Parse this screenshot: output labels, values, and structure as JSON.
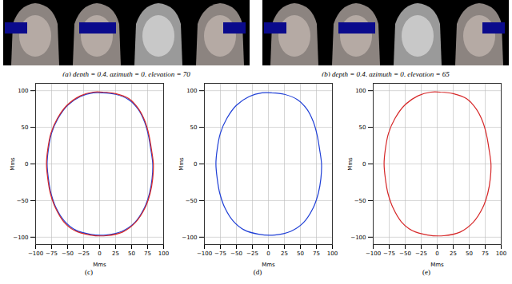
{
  "images": [
    {
      "caption": "(a) depth = 0.4, azimuth = 0, elevation = 70"
    },
    {
      "caption": "(b) depth = 0.4, azimuth = 0, elevation = 65"
    }
  ],
  "chart_data": [
    {
      "type": "line",
      "caption": "(c)",
      "x_label": "Mms",
      "y_label": "Mms",
      "xlim": [
        -100,
        100
      ],
      "ylim": [
        -110,
        110
      ],
      "xticks": [
        -100,
        -75,
        -50,
        -25,
        0,
        25,
        50,
        75,
        100
      ],
      "yticks": [
        -100,
        -50,
        0,
        50,
        100
      ],
      "grid": true,
      "series": [
        {
          "color": "#1f3fd6",
          "line_style": "solid",
          "x": [
            5,
            25,
            45,
            60,
            70,
            76,
            80,
            83,
            82,
            78,
            70,
            55,
            35,
            10,
            -15,
            -38,
            -55,
            -68,
            -76,
            -80,
            -82,
            -80,
            -75,
            -65,
            -50,
            -30,
            -10,
            5
          ],
          "y": [
            97,
            95,
            88,
            75,
            58,
            40,
            20,
            0,
            -20,
            -40,
            -60,
            -80,
            -92,
            -97,
            -96,
            -90,
            -78,
            -60,
            -40,
            -20,
            0,
            20,
            42,
            62,
            80,
            92,
            97,
            97
          ]
        },
        {
          "color": "#d62728",
          "line_style": "solid",
          "x": [
            5,
            25,
            46,
            61,
            71,
            77,
            81,
            84,
            83,
            79,
            71,
            56,
            36,
            10,
            -15,
            -39,
            -56,
            -69,
            -77,
            -81,
            -83,
            -81,
            -76,
            -66,
            -51,
            -30,
            -10,
            5
          ],
          "y": [
            98,
            96,
            89,
            75,
            58,
            40,
            20,
            0,
            -20,
            -40,
            -60,
            -80,
            -93,
            -98,
            -97,
            -91,
            -79,
            -60,
            -40,
            -20,
            0,
            20,
            42,
            62,
            80,
            93,
            98,
            98
          ]
        }
      ]
    },
    {
      "type": "line",
      "caption": "(d)",
      "x_label": "Mms",
      "y_label": "Mms",
      "xlim": [
        -100,
        100
      ],
      "ylim": [
        -110,
        110
      ],
      "xticks": [
        -100,
        -75,
        -50,
        -25,
        0,
        25,
        50,
        75,
        100
      ],
      "yticks": [
        -100,
        -50,
        0,
        50,
        100
      ],
      "grid": true,
      "series": [
        {
          "color": "#1f3fd6",
          "line_style": "solid",
          "x": [
            5,
            25,
            45,
            60,
            70,
            76,
            80,
            83,
            82,
            78,
            70,
            55,
            35,
            10,
            -15,
            -38,
            -55,
            -68,
            -76,
            -80,
            -82,
            -80,
            -75,
            -65,
            -50,
            -30,
            -10,
            5
          ],
          "y": [
            97,
            95,
            88,
            75,
            58,
            40,
            20,
            0,
            -20,
            -40,
            -60,
            -80,
            -92,
            -97,
            -96,
            -90,
            -78,
            -60,
            -40,
            -20,
            0,
            20,
            42,
            62,
            80,
            92,
            97,
            97
          ]
        }
      ]
    },
    {
      "type": "line",
      "caption": "(e)",
      "x_label": "Mms",
      "y_label": "Mms",
      "xlim": [
        -100,
        100
      ],
      "ylim": [
        -110,
        110
      ],
      "xticks": [
        -100,
        -75,
        -50,
        -25,
        0,
        25,
        50,
        75,
        100
      ],
      "yticks": [
        -100,
        -50,
        0,
        50,
        100
      ],
      "grid": true,
      "series": [
        {
          "color": "#d62728",
          "line_style": "solid",
          "x": [
            5,
            25,
            46,
            61,
            71,
            77,
            81,
            84,
            83,
            79,
            71,
            56,
            36,
            10,
            -15,
            -39,
            -56,
            -69,
            -77,
            -81,
            -83,
            -81,
            -76,
            -66,
            -51,
            -30,
            -10,
            5
          ],
          "y": [
            98,
            96,
            89,
            75,
            58,
            40,
            20,
            0,
            -20,
            -40,
            -60,
            -80,
            -93,
            -98,
            -97,
            -91,
            -79,
            -60,
            -40,
            -20,
            0,
            20,
            42,
            62,
            80,
            93,
            98,
            98
          ]
        }
      ]
    }
  ]
}
